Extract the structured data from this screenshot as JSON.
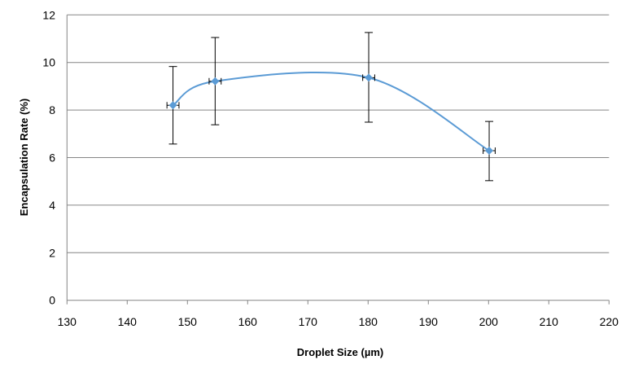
{
  "chart_data": {
    "type": "scatter",
    "title": "",
    "xlabel": "Droplet Size (µm)",
    "ylabel": "Encapsulation  Rate (%)",
    "xlim": [
      130,
      220
    ],
    "ylim": [
      0,
      12
    ],
    "xticks": [
      "130",
      "140",
      "150",
      "160",
      "170",
      "180",
      "190",
      "200",
      "210",
      "220"
    ],
    "yticks": [
      "0",
      "2",
      "4",
      "6",
      "8",
      "10",
      "12"
    ],
    "grid": "horizontal",
    "legend": "none",
    "line": "smoothed",
    "series": [
      {
        "color": "#5B9BD5",
        "points": [
          {
            "x": 147.6,
            "y": 8.2,
            "y_err_high": 9.83,
            "y_err_low": 6.57,
            "x_err": 1
          },
          {
            "x": 154.6,
            "y": 9.21,
            "y_err_high": 11.05,
            "y_err_low": 7.38,
            "x_err": 1
          },
          {
            "x": 180.1,
            "y": 9.36,
            "y_err_high": 11.26,
            "y_err_low": 7.49,
            "x_err": 1
          },
          {
            "x": 200.1,
            "y": 6.29,
            "y_err_high": 7.52,
            "y_err_low": 5.03,
            "x_err": 1
          }
        ]
      }
    ]
  }
}
